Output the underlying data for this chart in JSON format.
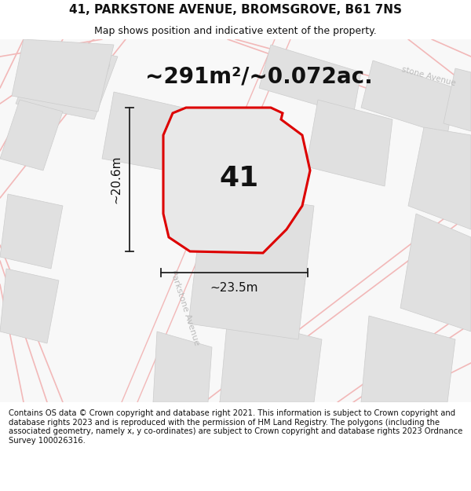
{
  "title": "41, PARKSTONE AVENUE, BROMSGROVE, B61 7NS",
  "subtitle": "Map shows position and indicative extent of the property.",
  "area_text": "~291m²/~0.072ac.",
  "number_label": "41",
  "width_label": "~23.5m",
  "height_label": "~20.6m",
  "footer_text": "Contains OS data © Crown copyright and database right 2021. This information is subject to Crown copyright and database rights 2023 and is reproduced with the permission of HM Land Registry. The polygons (including the associated geometry, namely x, y co-ordinates) are subject to Crown copyright and database rights 2023 Ordnance Survey 100026316.",
  "bg_color": "#f5f5f5",
  "map_bg": "#f0f0f0",
  "road_color": "#f2b8b8",
  "block_color": "#e0e0e0",
  "block_edge": "#cccccc",
  "plot_fill": "#e8e8e8",
  "plot_outline": "#dd0000",
  "dim_line_color": "#222222",
  "text_color": "#111111",
  "road_label_color": "#bbbbbb",
  "title_fontsize": 11,
  "subtitle_fontsize": 9,
  "area_fontsize": 20,
  "number_fontsize": 26,
  "dim_fontsize": 11,
  "footer_fontsize": 7.2,
  "road_linewidth": 1.2,
  "plot_linewidth": 2.2
}
